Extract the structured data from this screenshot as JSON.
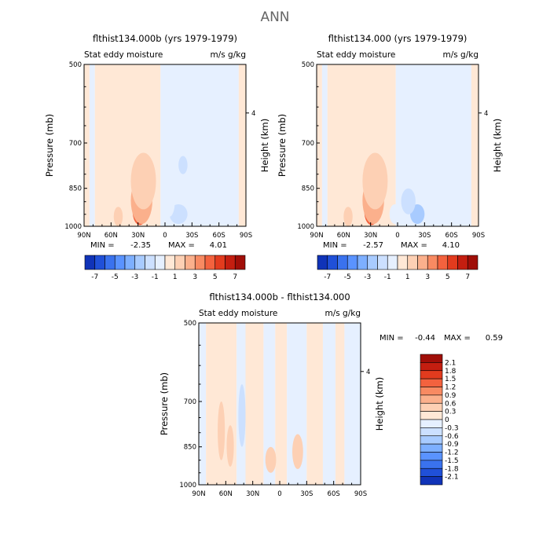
{
  "figure_title": "ANN",
  "colors": {
    "neg": [
      "#e6f0ff",
      "#cce0ff",
      "#a8cbff",
      "#7dafff",
      "#5a93ff",
      "#3a72ee",
      "#2050d8",
      "#1033b8",
      "#061a8c",
      "#000d70"
    ],
    "pos": [
      "#ffe8d6",
      "#fdd0b4",
      "#fbb08c",
      "#f88a62",
      "#f3623e",
      "#e23b1e",
      "#c41e10",
      "#a00e08",
      "#7c0000"
    ]
  },
  "chart_data": [
    {
      "type": "heatmap",
      "id": "p1",
      "title": "flthist134.000b (yrs 1979-1979)",
      "subtitle_left": "Stat eddy moisture",
      "subtitle_right": "m/s g/kg",
      "ylabel": "Pressure (mb)",
      "y2label": "Height (km)",
      "y_ticks": [
        "500",
        "700",
        "850",
        "1000"
      ],
      "y2_ticks": [
        "4"
      ],
      "x_ticks": [
        "90N",
        "60N",
        "30N",
        "0",
        "30S",
        "60S",
        "90S"
      ],
      "stats": {
        "min_label": "MIN =",
        "min": "-2.35",
        "max_label": "MAX =",
        "max": "4.01"
      },
      "min": -2.35,
      "max": 4.01,
      "colorbar": {
        "orientation": "horizontal",
        "labels": [
          "-7",
          "-5",
          "-3",
          "-1",
          "1",
          "3",
          "5",
          "7"
        ],
        "levels": [
          -8,
          -7,
          -6,
          -5,
          -4,
          -3,
          -2,
          -1,
          0,
          1,
          2,
          3,
          4,
          5,
          6,
          7,
          8
        ]
      },
      "features": [
        {
          "lat": 28,
          "p": 940,
          "w": 8,
          "h": 110,
          "v": 4.0
        },
        {
          "lat": 26,
          "p": 900,
          "w": 12,
          "h": 180,
          "v": 2.0
        },
        {
          "lat": 24,
          "p": 830,
          "w": 14,
          "h": 200,
          "v": 1.2
        },
        {
          "lat": 52,
          "p": 960,
          "w": 5,
          "h": 80,
          "v": 1.0
        },
        {
          "lat": -15,
          "p": 950,
          "w": 10,
          "h": 80,
          "v": -1.8
        },
        {
          "lat": -20,
          "p": 770,
          "w": 5,
          "h": 60,
          "v": -1.2
        },
        {
          "lat": -5,
          "p": 900,
          "w": 6,
          "h": 120,
          "v": -1.0
        }
      ],
      "base": [
        {
          "from": 90,
          "to": 84,
          "v": 0.3
        },
        {
          "from": 84,
          "to": 78,
          "v": -0.3
        },
        {
          "from": 78,
          "to": 5,
          "v": 0.3
        },
        {
          "from": 5,
          "to": -82,
          "v": -0.3
        },
        {
          "from": -82,
          "to": -90,
          "v": 0.3
        }
      ]
    },
    {
      "type": "heatmap",
      "id": "p2",
      "title": "flthist134.000 (yrs 1979-1979)",
      "subtitle_left": "Stat eddy moisture",
      "subtitle_right": "m/s g/kg",
      "ylabel": "Pressure (mb)",
      "y2label": "Height (km)",
      "y_ticks": [
        "500",
        "700",
        "850",
        "1000"
      ],
      "y2_ticks": [
        "4"
      ],
      "x_ticks": [
        "90N",
        "60N",
        "30N",
        "0",
        "30S",
        "60S",
        "90S"
      ],
      "stats": {
        "min_label": "MIN =",
        "min": "-2.57",
        "max_label": "MAX =",
        "max": "4.10"
      },
      "min": -2.57,
      "max": 4.1,
      "colorbar": {
        "orientation": "horizontal",
        "labels": [
          "-7",
          "-5",
          "-3",
          "-1",
          "1",
          "3",
          "5",
          "7"
        ],
        "levels": [
          -8,
          -7,
          -6,
          -5,
          -4,
          -3,
          -2,
          -1,
          0,
          1,
          2,
          3,
          4,
          5,
          6,
          7,
          8
        ]
      },
      "features": [
        {
          "lat": 29,
          "p": 940,
          "w": 8,
          "h": 110,
          "v": 4.1
        },
        {
          "lat": 27,
          "p": 900,
          "w": 12,
          "h": 180,
          "v": 2.0
        },
        {
          "lat": 25,
          "p": 830,
          "w": 14,
          "h": 200,
          "v": 1.2
        },
        {
          "lat": 55,
          "p": 960,
          "w": 5,
          "h": 80,
          "v": 1.0
        },
        {
          "lat": -22,
          "p": 950,
          "w": 8,
          "h": 80,
          "v": -2.2
        },
        {
          "lat": -12,
          "p": 900,
          "w": 8,
          "h": 100,
          "v": -1.2
        },
        {
          "lat": 3,
          "p": 950,
          "w": 6,
          "h": 80,
          "v": -1.0
        }
      ],
      "base": [
        {
          "from": 90,
          "to": 84,
          "v": 0.3
        },
        {
          "from": 84,
          "to": 78,
          "v": -0.3
        },
        {
          "from": 78,
          "to": 2,
          "v": 0.3
        },
        {
          "from": 2,
          "to": -82,
          "v": -0.3
        },
        {
          "from": -82,
          "to": -90,
          "v": 0.3
        }
      ]
    },
    {
      "type": "heatmap",
      "id": "p3",
      "title": "flthist134.000b - flthist134.000",
      "subtitle_left": "Stat eddy moisture",
      "subtitle_right": "m/s g/kg",
      "ylabel": "Pressure (mb)",
      "y2label": "Height (km)",
      "y_ticks": [
        "500",
        "700",
        "850",
        "1000"
      ],
      "y2_ticks": [
        "4"
      ],
      "x_ticks": [
        "90N",
        "60N",
        "30N",
        "0",
        "30S",
        "60S",
        "90S"
      ],
      "stats": {
        "min_label": "MIN =",
        "min": "-0.44",
        "max_label": "MAX =",
        "max": "0.59"
      },
      "min": -0.44,
      "max": 0.59,
      "colorbar": {
        "orientation": "vertical",
        "labels": [
          "2.1",
          "1.8",
          "1.5",
          "1.2",
          "0.9",
          "0.6",
          "0.3",
          "0",
          "-0.3",
          "-0.6",
          "-0.9",
          "-1.2",
          "-1.5",
          "-1.8",
          "-2.1"
        ],
        "levels": [
          -2.4,
          -2.1,
          -1.8,
          -1.5,
          -1.2,
          -0.9,
          -0.6,
          -0.3,
          0,
          0.3,
          0.6,
          0.9,
          1.2,
          1.5,
          1.8,
          2.1,
          2.4
        ]
      },
      "features": [
        {
          "lat": 65,
          "p": 800,
          "w": 4,
          "h": 200,
          "v": 0.4
        },
        {
          "lat": 55,
          "p": 850,
          "w": 4,
          "h": 150,
          "v": 0.4
        },
        {
          "lat": 10,
          "p": 900,
          "w": 6,
          "h": 100,
          "v": 0.35
        },
        {
          "lat": -20,
          "p": 870,
          "w": 6,
          "h": 130,
          "v": 0.35
        },
        {
          "lat": 42,
          "p": 750,
          "w": 4,
          "h": 200,
          "v": -0.35
        }
      ],
      "base": [
        {
          "from": 90,
          "to": 82,
          "v": -0.2
        },
        {
          "from": 82,
          "to": 48,
          "v": 0.2
        },
        {
          "from": 48,
          "to": 38,
          "v": -0.2
        },
        {
          "from": 38,
          "to": 18,
          "v": 0.2
        },
        {
          "from": 18,
          "to": 5,
          "v": -0.2
        },
        {
          "from": 5,
          "to": -8,
          "v": 0.2
        },
        {
          "from": -8,
          "to": -30,
          "v": -0.2
        },
        {
          "from": -30,
          "to": -48,
          "v": 0.2
        },
        {
          "from": -48,
          "to": -62,
          "v": -0.2
        },
        {
          "from": -62,
          "to": -72,
          "v": 0.2
        },
        {
          "from": -72,
          "to": -90,
          "v": -0.2
        }
      ]
    }
  ]
}
